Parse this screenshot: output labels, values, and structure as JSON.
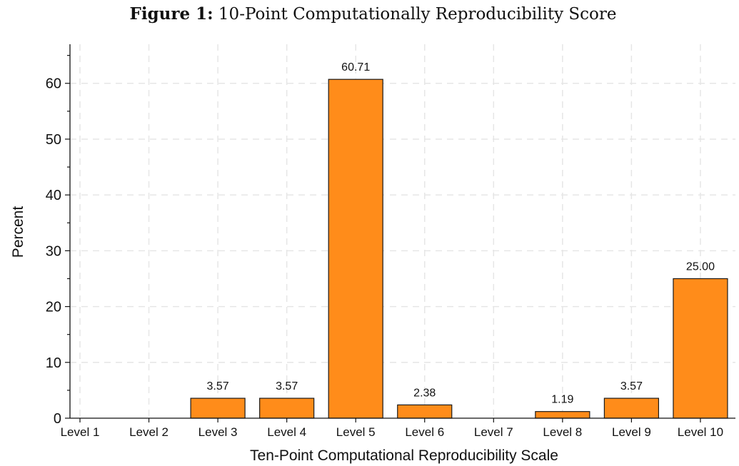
{
  "figure": {
    "label": "Figure 1:",
    "title": "10-Point Computationally Reproducibility Score"
  },
  "chart_data": {
    "type": "bar",
    "title": "Figure 1: 10-Point Computationally Reproducibility Score",
    "xlabel": "Ten-Point Computational Reproducibility Scale",
    "ylabel": "Percent",
    "categories": [
      "Level 1",
      "Level 2",
      "Level 3",
      "Level 4",
      "Level 5",
      "Level 6",
      "Level 7",
      "Level 8",
      "Level 9",
      "Level 10"
    ],
    "values": [
      0,
      0,
      3.57,
      3.57,
      60.71,
      2.38,
      0,
      1.19,
      3.57,
      25.0
    ],
    "data_labels": [
      "",
      "",
      "3.57",
      "3.57",
      "60.71",
      "2.38",
      "",
      "1.19",
      "3.57",
      "25.00"
    ],
    "ylim": [
      0,
      67
    ],
    "yticks": [
      0,
      10,
      20,
      30,
      40,
      50,
      60
    ],
    "grid": true,
    "bar_color": "#FF8C1A",
    "bar_edge_color": "#1a1a1a"
  }
}
